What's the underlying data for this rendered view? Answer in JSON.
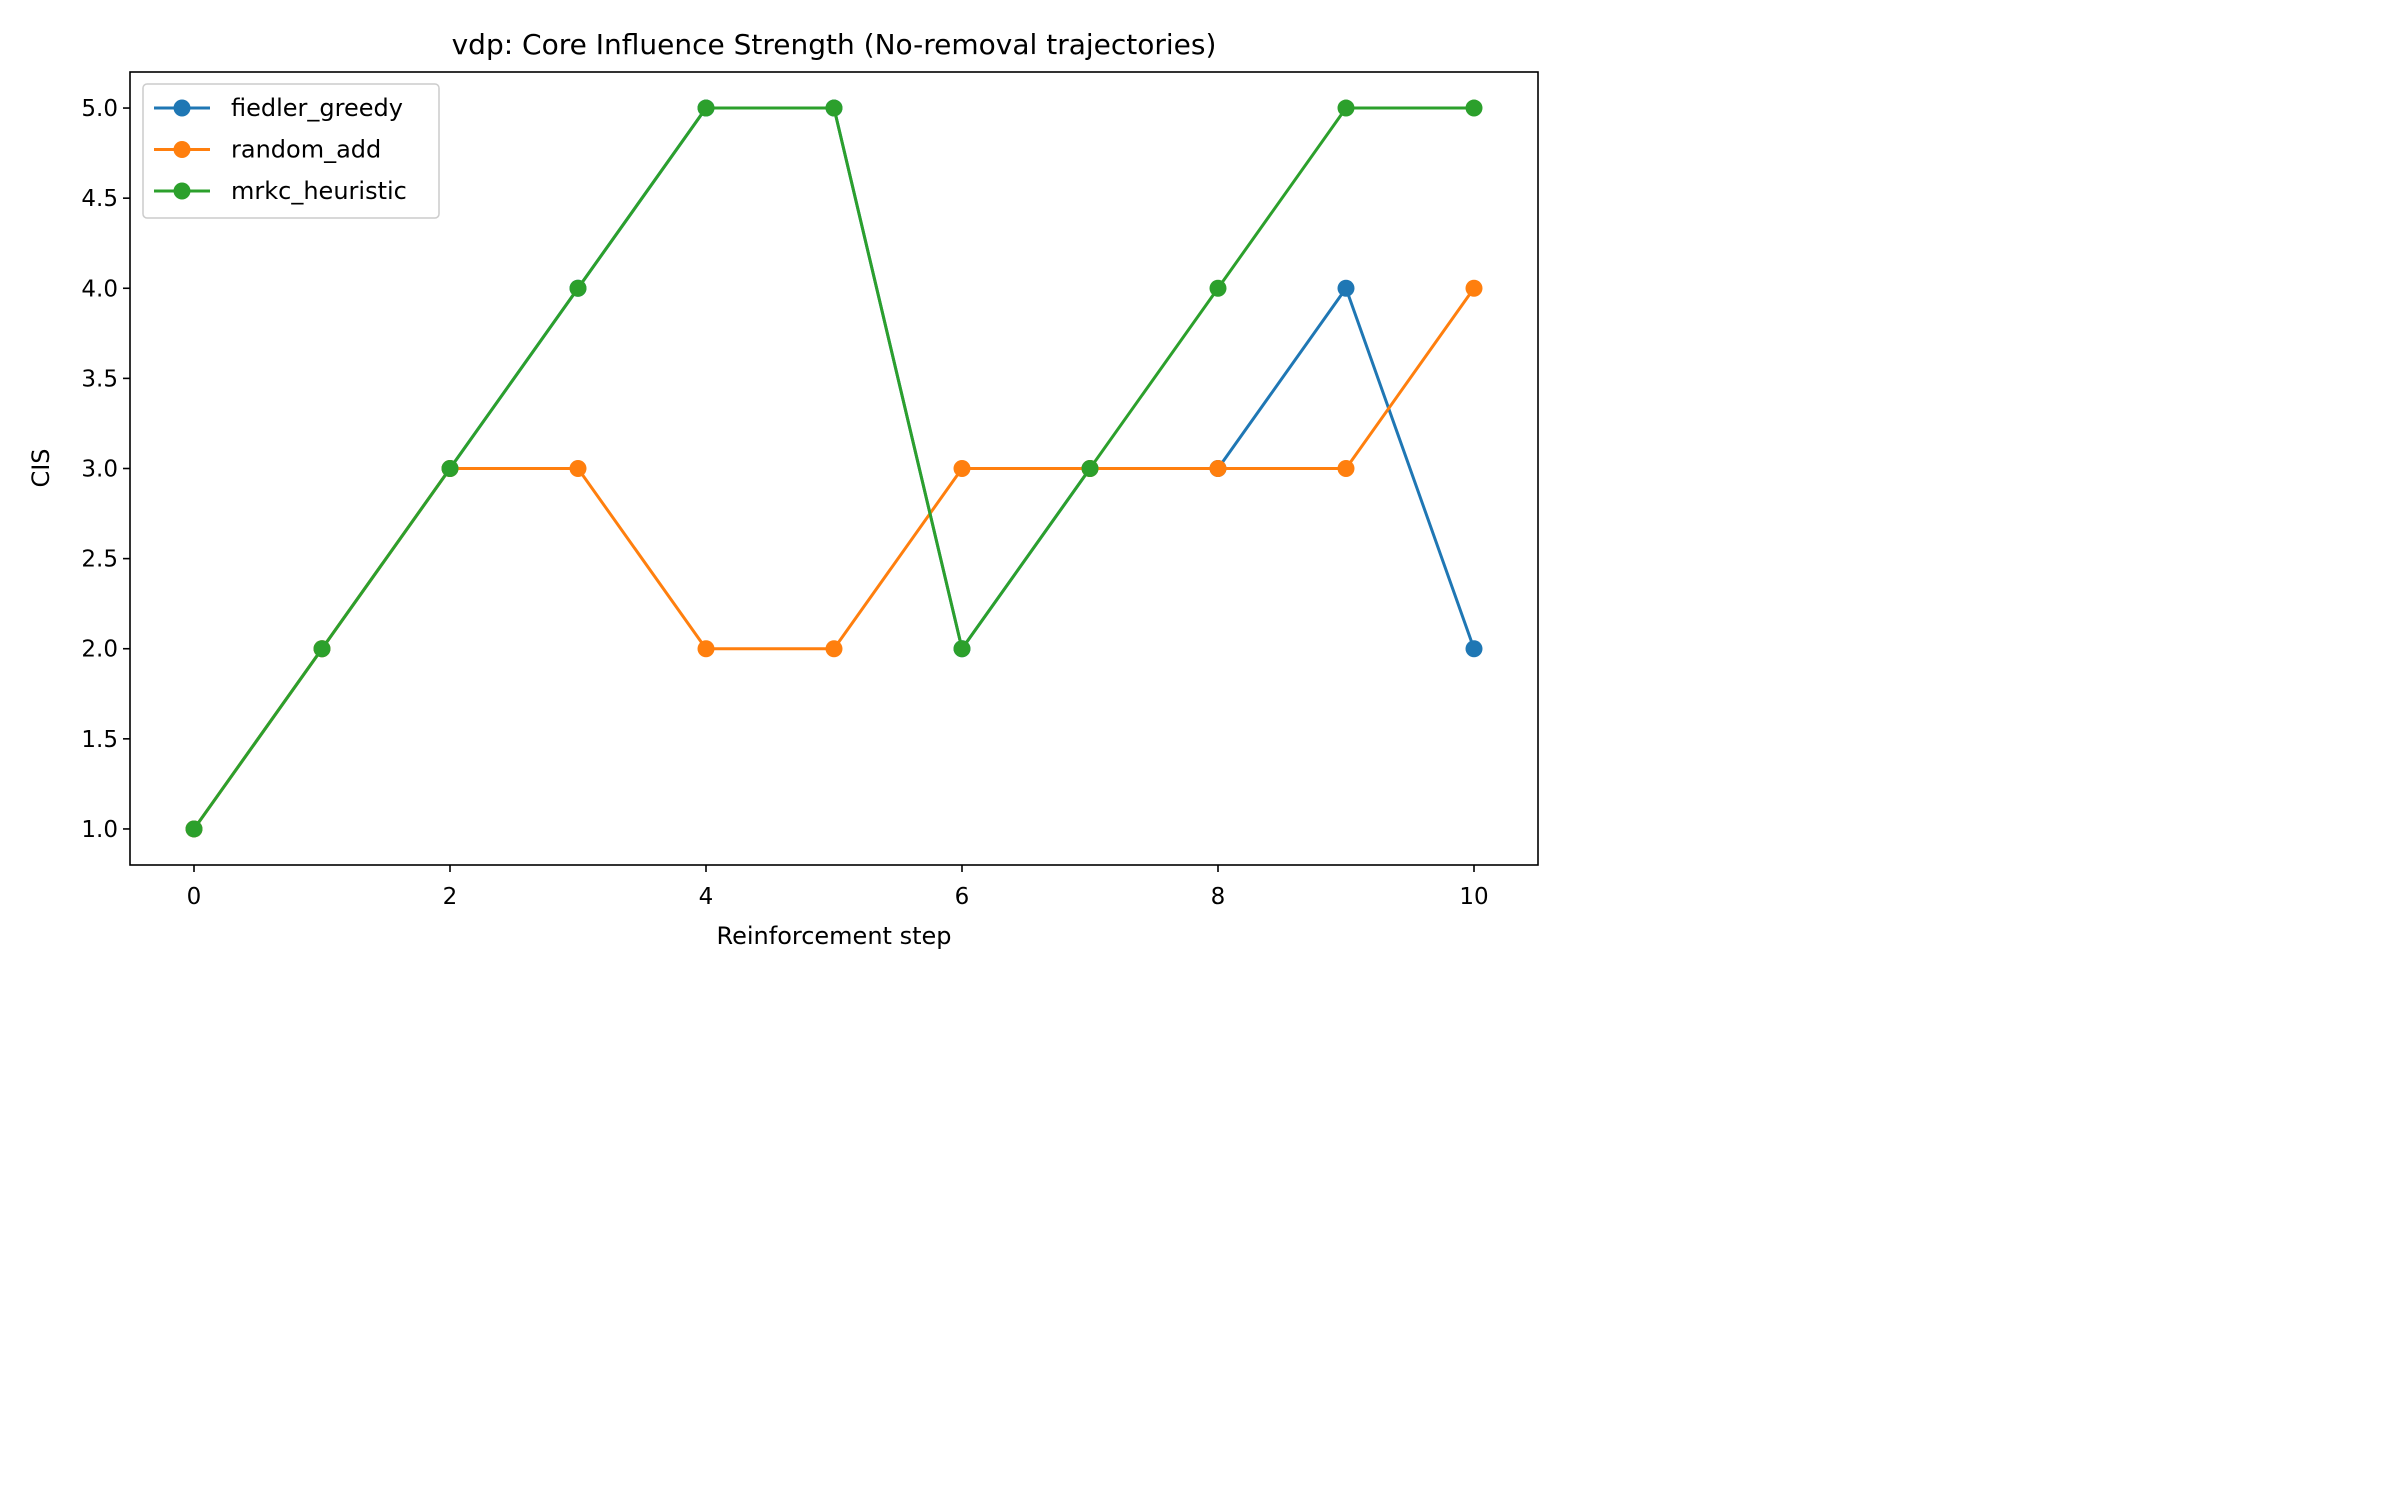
{
  "chart_data": {
    "type": "line",
    "title": "vdp: Core Influence Strength (No-removal trajectories)",
    "xlabel": "Reinforcement step",
    "ylabel": "CIS",
    "x": [
      0,
      1,
      2,
      3,
      4,
      5,
      6,
      7,
      8,
      9,
      10
    ],
    "xlim": [
      -0.5,
      10.5
    ],
    "ylim": [
      0.8,
      5.2
    ],
    "xticks": [
      0,
      2,
      4,
      6,
      8,
      10
    ],
    "xtick_labels": [
      "0",
      "2",
      "4",
      "6",
      "8",
      "10"
    ],
    "yticks": [
      1.0,
      1.5,
      2.0,
      2.5,
      3.0,
      3.5,
      4.0,
      4.5,
      5.0
    ],
    "ytick_labels": [
      "1.0",
      "1.5",
      "2.0",
      "2.5",
      "3.0",
      "3.5",
      "4.0",
      "4.5",
      "5.0"
    ],
    "grid": false,
    "legend_position": "top-left",
    "series": [
      {
        "name": "fiedler_greedy",
        "color": "#1f77b4",
        "marker": "circle",
        "values": [
          1,
          2,
          3,
          4,
          5,
          5,
          2,
          3,
          3,
          4,
          2
        ]
      },
      {
        "name": "random_add",
        "color": "#ff7f0e",
        "marker": "circle",
        "values": [
          1,
          2,
          3,
          3,
          2,
          2,
          3,
          3,
          3,
          3,
          4
        ]
      },
      {
        "name": "mrkc_heuristic",
        "color": "#2ca02c",
        "marker": "circle",
        "values": [
          1,
          2,
          3,
          4,
          5,
          5,
          2,
          3,
          4,
          5,
          5
        ]
      }
    ]
  }
}
